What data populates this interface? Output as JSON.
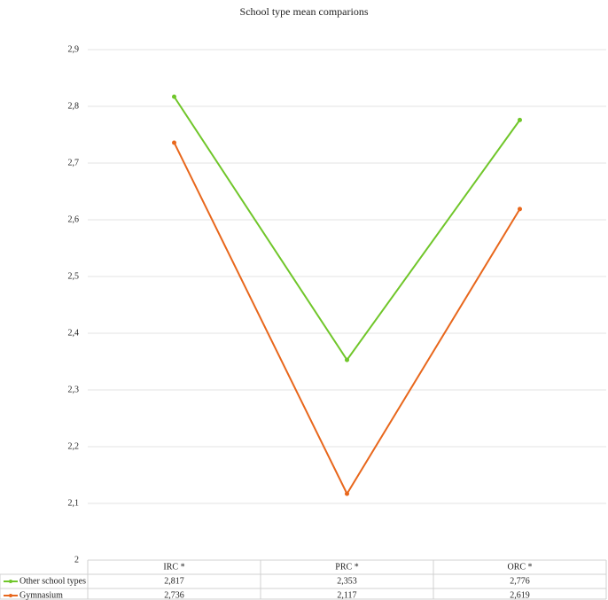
{
  "chart_data": {
    "type": "line",
    "title": "School type mean comparions",
    "categories": [
      "IRC *",
      "PRC *",
      "ORC *"
    ],
    "series": [
      {
        "name": "Other school types",
        "color": "#70c62a",
        "values": [
          2.817,
          2.353,
          2.776
        ],
        "value_labels": [
          "2,817",
          "2,353",
          "2,776"
        ]
      },
      {
        "name": "Gymnasium",
        "color": "#e8671c",
        "values": [
          2.736,
          2.117,
          2.619
        ],
        "value_labels": [
          "2,736",
          "2,117",
          "2,619"
        ]
      }
    ],
    "ylim": [
      2,
      2.9
    ],
    "yticks": [
      2,
      {
        "value": 2.1,
        "label": "2,1"
      },
      {
        "value": 2.2,
        "label": "2,2"
      },
      {
        "value": 2.3,
        "label": "2,3"
      },
      {
        "value": 2.4,
        "label": "2,4"
      },
      {
        "value": 2.5,
        "label": "2,5"
      },
      {
        "value": 2.6,
        "label": "2,6"
      },
      {
        "value": 2.7,
        "label": "2,7"
      },
      {
        "value": 2.8,
        "label": "2,8"
      },
      {
        "value": 2.9,
        "label": "2,9"
      }
    ],
    "grid": true
  }
}
